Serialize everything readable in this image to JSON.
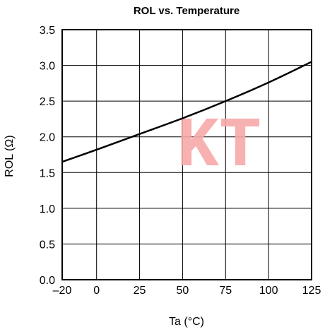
{
  "chart_data": {
    "type": "line",
    "title": "ROL vs. Temperature",
    "xlabel": "Ta (°C)",
    "ylabel": "ROL (Ω)",
    "xlim": [
      -20,
      125
    ],
    "ylim": [
      0.0,
      3.5
    ],
    "x_ticks": [
      -20,
      0,
      25,
      50,
      75,
      100,
      125
    ],
    "x_tick_labels": [
      "–20",
      "0",
      "25",
      "50",
      "75",
      "100",
      "125"
    ],
    "y_ticks": [
      0.0,
      0.5,
      1.0,
      1.5,
      2.0,
      2.5,
      3.0,
      3.5
    ],
    "y_tick_labels": [
      "0.0",
      "0.5",
      "1.0",
      "1.5",
      "2.0",
      "2.5",
      "3.0",
      "3.5"
    ],
    "grid": true,
    "series": [
      {
        "x": [
          -20,
          0,
          25,
          50,
          75,
          100,
          125
        ],
        "y": [
          1.65,
          1.82,
          2.04,
          2.26,
          2.5,
          2.76,
          3.05
        ]
      }
    ],
    "watermark": "KT",
    "colors": {
      "line": "#000000",
      "grid": "#000000",
      "watermark": "#f6a8a8"
    }
  }
}
